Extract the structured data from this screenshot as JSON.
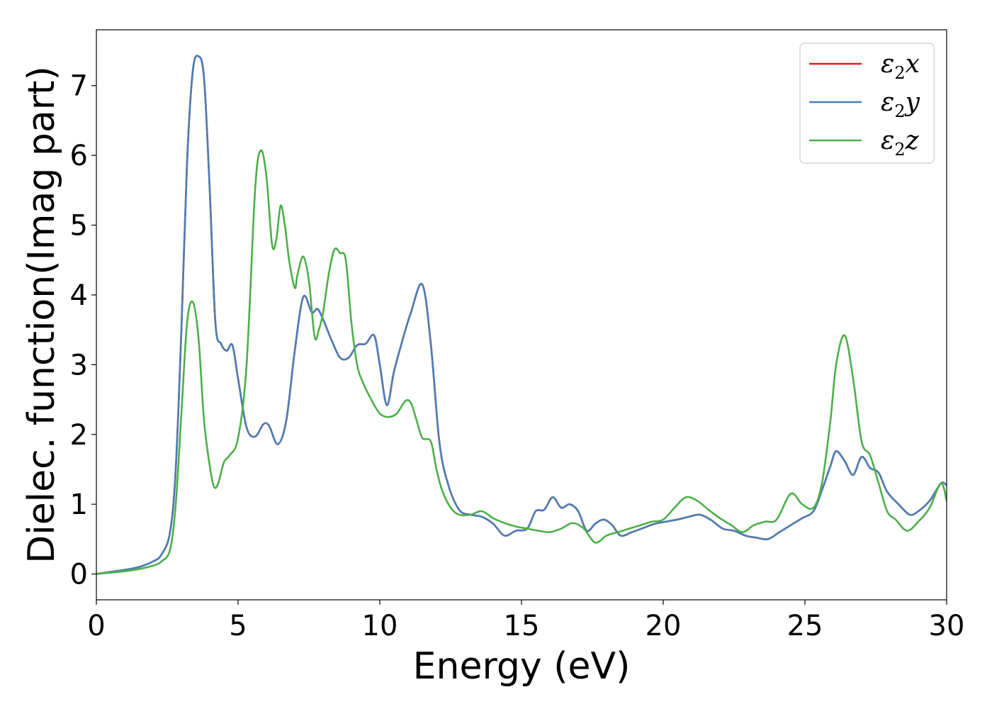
{
  "chart_data": {
    "type": "line",
    "title": "",
    "xlabel": "Energy (eV)",
    "ylabel": "Dielec. function(Imag part)",
    "xlim": [
      0,
      30
    ],
    "ylim": [
      -0.37,
      7.8
    ],
    "xticks": [
      0,
      5,
      10,
      15,
      20,
      25,
      30
    ],
    "yticks": [
      0,
      1,
      2,
      3,
      4,
      5,
      6,
      7
    ],
    "grid": false,
    "legend_position": "top-right",
    "series": [
      {
        "name": "ε2x",
        "legend_base": "ε",
        "legend_sub": "2",
        "legend_axis": "x",
        "color": "#e41a1c",
        "x": [
          0,
          1,
          1.5,
          2,
          2.3,
          2.6,
          2.8,
          3.0,
          3.2,
          3.4,
          3.6,
          3.8,
          4.0,
          4.2,
          4.4,
          4.6,
          4.8,
          5.0,
          5.3,
          5.6,
          5.9,
          6.1,
          6.4,
          6.7,
          7.0,
          7.3,
          7.6,
          7.8,
          8.0,
          8.3,
          8.6,
          8.9,
          9.2,
          9.5,
          9.8,
          10.0,
          10.25,
          10.5,
          10.8,
          11.1,
          11.5,
          11.8,
          12.1,
          12.4,
          12.8,
          13.2,
          13.6,
          14.0,
          14.4,
          14.8,
          15.2,
          15.5,
          15.8,
          16.1,
          16.4,
          16.7,
          17.0,
          17.3,
          17.6,
          17.9,
          18.2,
          18.5,
          18.9,
          19.3,
          19.7,
          20.1,
          20.5,
          20.9,
          21.3,
          21.7,
          22.1,
          22.5,
          22.9,
          23.3,
          23.7,
          24.1,
          24.5,
          24.9,
          25.3,
          25.6,
          25.9,
          26.1,
          26.4,
          26.7,
          27.0,
          27.3,
          27.6,
          27.9,
          28.3,
          28.7,
          29.0,
          29.4,
          29.8,
          30
        ],
        "y": [
          0,
          0.06,
          0.1,
          0.18,
          0.28,
          0.6,
          1.5,
          3.5,
          5.9,
          7.2,
          7.42,
          7.1,
          5.5,
          3.6,
          3.3,
          3.2,
          3.28,
          2.8,
          2.1,
          1.97,
          2.15,
          2.12,
          1.86,
          2.2,
          3.2,
          3.97,
          3.75,
          3.8,
          3.65,
          3.35,
          3.1,
          3.1,
          3.28,
          3.3,
          3.42,
          3.0,
          2.42,
          2.9,
          3.35,
          3.75,
          4.15,
          3.3,
          1.9,
          1.3,
          0.92,
          0.85,
          0.82,
          0.72,
          0.55,
          0.62,
          0.65,
          0.9,
          0.92,
          1.1,
          0.95,
          1.0,
          0.9,
          0.62,
          0.72,
          0.78,
          0.7,
          0.55,
          0.6,
          0.66,
          0.72,
          0.75,
          0.78,
          0.82,
          0.85,
          0.77,
          0.65,
          0.62,
          0.55,
          0.52,
          0.5,
          0.6,
          0.7,
          0.8,
          0.9,
          1.2,
          1.55,
          1.76,
          1.62,
          1.42,
          1.68,
          1.52,
          1.45,
          1.18,
          1.0,
          0.85,
          0.9,
          1.05,
          1.3,
          1.27
        ]
      },
      {
        "name": "ε2y",
        "legend_base": "ε",
        "legend_sub": "2",
        "legend_axis": "y",
        "color": "#4a7fb5",
        "x": [
          0,
          1,
          1.5,
          2,
          2.3,
          2.6,
          2.8,
          3.0,
          3.2,
          3.4,
          3.6,
          3.8,
          4.0,
          4.2,
          4.4,
          4.6,
          4.8,
          5.0,
          5.3,
          5.6,
          5.9,
          6.1,
          6.4,
          6.7,
          7.0,
          7.3,
          7.6,
          7.8,
          8.0,
          8.3,
          8.6,
          8.9,
          9.2,
          9.5,
          9.8,
          10.0,
          10.25,
          10.5,
          10.8,
          11.1,
          11.5,
          11.8,
          12.1,
          12.4,
          12.8,
          13.2,
          13.6,
          14.0,
          14.4,
          14.8,
          15.2,
          15.5,
          15.8,
          16.1,
          16.4,
          16.7,
          17.0,
          17.3,
          17.6,
          17.9,
          18.2,
          18.5,
          18.9,
          19.3,
          19.7,
          20.1,
          20.5,
          20.9,
          21.3,
          21.7,
          22.1,
          22.5,
          22.9,
          23.3,
          23.7,
          24.1,
          24.5,
          24.9,
          25.3,
          25.6,
          25.9,
          26.1,
          26.4,
          26.7,
          27.0,
          27.3,
          27.6,
          27.9,
          28.3,
          28.7,
          29.0,
          29.4,
          29.8,
          30
        ],
        "y": [
          0,
          0.06,
          0.1,
          0.18,
          0.28,
          0.6,
          1.5,
          3.5,
          5.9,
          7.2,
          7.42,
          7.1,
          5.5,
          3.6,
          3.3,
          3.2,
          3.28,
          2.8,
          2.1,
          1.97,
          2.15,
          2.12,
          1.86,
          2.2,
          3.2,
          3.97,
          3.75,
          3.8,
          3.65,
          3.35,
          3.1,
          3.1,
          3.28,
          3.3,
          3.42,
          3.0,
          2.42,
          2.9,
          3.35,
          3.75,
          4.15,
          3.3,
          1.9,
          1.3,
          0.92,
          0.85,
          0.82,
          0.72,
          0.55,
          0.62,
          0.65,
          0.9,
          0.92,
          1.1,
          0.95,
          1.0,
          0.9,
          0.62,
          0.72,
          0.78,
          0.7,
          0.55,
          0.6,
          0.66,
          0.72,
          0.75,
          0.78,
          0.82,
          0.85,
          0.77,
          0.65,
          0.62,
          0.55,
          0.52,
          0.5,
          0.6,
          0.7,
          0.8,
          0.9,
          1.2,
          1.55,
          1.76,
          1.62,
          1.42,
          1.68,
          1.52,
          1.45,
          1.18,
          1.0,
          0.85,
          0.9,
          1.05,
          1.3,
          1.27
        ]
      },
      {
        "name": "ε2z",
        "legend_base": "ε",
        "legend_sub": "2",
        "legend_axis": "z",
        "color": "#4daf4a",
        "x": [
          0,
          1,
          1.5,
          2,
          2.3,
          2.6,
          2.8,
          3.0,
          3.2,
          3.4,
          3.6,
          3.8,
          4.0,
          4.15,
          4.3,
          4.5,
          4.7,
          5.0,
          5.3,
          5.6,
          5.8,
          6.0,
          6.2,
          6.35,
          6.5,
          6.65,
          6.8,
          7.0,
          7.1,
          7.3,
          7.5,
          7.7,
          7.85,
          8.0,
          8.2,
          8.4,
          8.6,
          8.8,
          9.0,
          9.2,
          9.4,
          9.7,
          10.0,
          10.3,
          10.6,
          10.9,
          11.1,
          11.3,
          11.5,
          11.8,
          12.0,
          12.2,
          12.5,
          12.8,
          13.2,
          13.6,
          14.0,
          14.4,
          14.8,
          15.2,
          15.6,
          16.0,
          16.4,
          16.8,
          17.2,
          17.6,
          18.0,
          18.4,
          18.8,
          19.2,
          19.6,
          20.0,
          20.4,
          20.8,
          21.2,
          21.6,
          22.0,
          22.4,
          22.8,
          23.2,
          23.6,
          24.0,
          24.5,
          24.9,
          25.3,
          25.6,
          25.9,
          26.1,
          26.4,
          26.7,
          27.0,
          27.3,
          27.6,
          27.9,
          28.2,
          28.6,
          29.0,
          29.4,
          29.8,
          30
        ],
        "y": [
          0,
          0.04,
          0.07,
          0.12,
          0.18,
          0.35,
          1.0,
          2.3,
          3.6,
          3.9,
          3.4,
          2.2,
          1.55,
          1.25,
          1.3,
          1.6,
          1.7,
          1.95,
          3.0,
          5.5,
          6.07,
          5.7,
          4.72,
          4.8,
          5.28,
          5.0,
          4.5,
          4.1,
          4.3,
          4.55,
          4.2,
          3.4,
          3.5,
          3.75,
          4.3,
          4.65,
          4.6,
          4.5,
          3.6,
          3.0,
          2.75,
          2.5,
          2.3,
          2.25,
          2.3,
          2.48,
          2.45,
          2.2,
          1.95,
          1.9,
          1.5,
          1.2,
          0.95,
          0.85,
          0.85,
          0.9,
          0.8,
          0.73,
          0.68,
          0.65,
          0.62,
          0.6,
          0.65,
          0.73,
          0.65,
          0.45,
          0.55,
          0.6,
          0.65,
          0.7,
          0.75,
          0.78,
          0.95,
          1.1,
          1.05,
          0.92,
          0.8,
          0.7,
          0.6,
          0.7,
          0.75,
          0.78,
          1.15,
          1.0,
          0.95,
          1.3,
          2.2,
          3.0,
          3.42,
          2.8,
          1.9,
          1.7,
          1.3,
          0.9,
          0.78,
          0.62,
          0.75,
          0.95,
          1.3,
          1.05
        ]
      }
    ]
  }
}
